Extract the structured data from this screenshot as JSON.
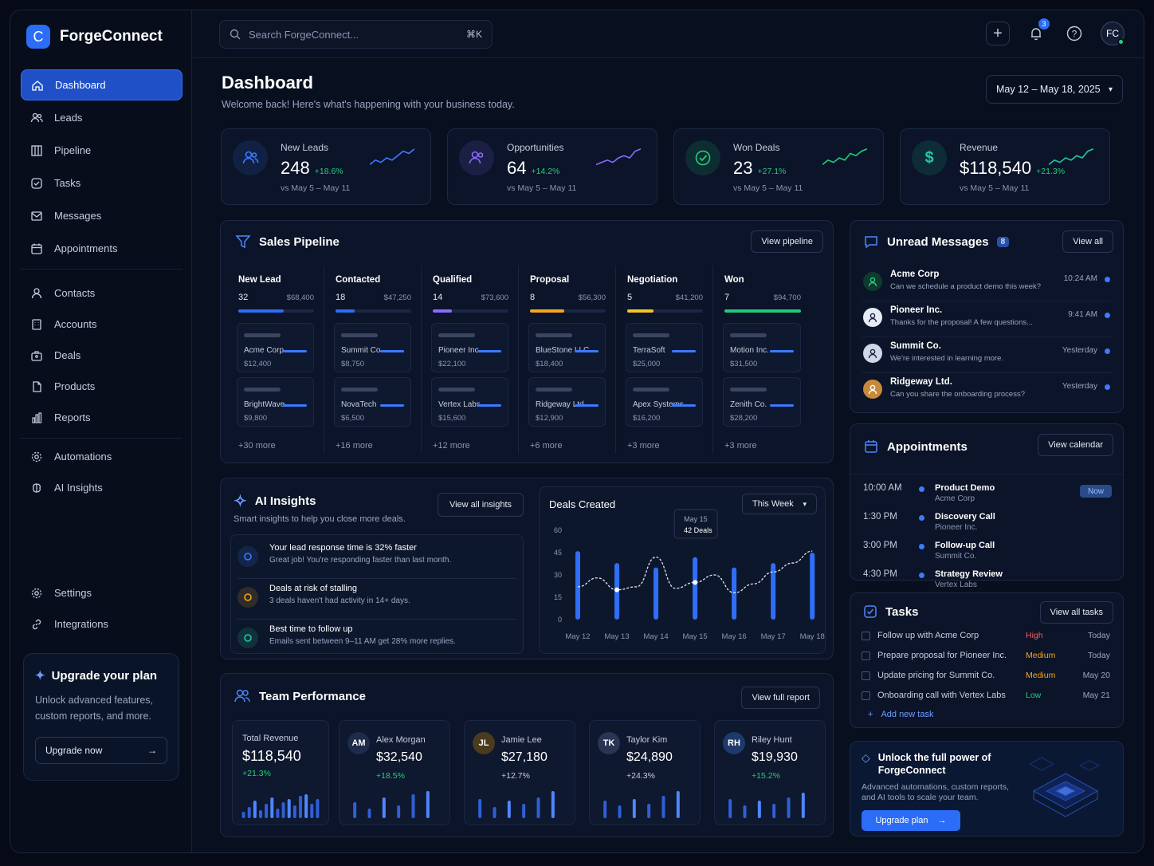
{
  "app": {
    "name": "ForgeConnect",
    "logo_letter": "C"
  },
  "search": {
    "placeholder": "Search ForgeConnect...",
    "shortcut": "⌘K"
  },
  "topbar": {
    "notif_count": "3",
    "user_initials": "FC"
  },
  "sidebar": {
    "items": [
      {
        "label": "Dashboard",
        "icon": "home-icon"
      },
      {
        "label": "Leads",
        "icon": "users-icon"
      },
      {
        "label": "Pipeline",
        "icon": "columns-icon"
      },
      {
        "label": "Tasks",
        "icon": "check-square-icon"
      },
      {
        "label": "Messages",
        "icon": "mail-icon"
      },
      {
        "label": "Appointments",
        "icon": "calendar-icon"
      },
      {
        "label": "Contacts",
        "icon": "user-icon"
      },
      {
        "label": "Accounts",
        "icon": "building-icon"
      },
      {
        "label": "Deals",
        "icon": "briefcase-icon"
      },
      {
        "label": "Products",
        "icon": "box-icon"
      },
      {
        "label": "Reports",
        "icon": "bar-chart-icon"
      },
      {
        "label": "Automations",
        "icon": "gear-icon"
      },
      {
        "label": "AI Insights",
        "icon": "brain-icon"
      },
      {
        "label": "Settings",
        "icon": "gear-icon"
      },
      {
        "label": "Integrations",
        "icon": "link-icon"
      }
    ],
    "upgrade": {
      "title": "Upgrade your plan",
      "text1": "Unlock advanced features,",
      "text2": "custom reports, and more.",
      "button": "Upgrade now"
    }
  },
  "header": {
    "title": "Dashboard",
    "subtitle": "Welcome back! Here's what's happening with your business today.",
    "date_range": "May 12 – May 18, 2025"
  },
  "kpis": [
    {
      "label": "New Leads",
      "value": "248",
      "change": "+18.6%",
      "compare": "vs May 5 – May 11",
      "color": "#3b7bff"
    },
    {
      "label": "Opportunities",
      "value": "64",
      "change": "+14.2%",
      "compare": "vs May 5 – May 11",
      "color": "#8a6bff"
    },
    {
      "label": "Won Deals",
      "value": "23",
      "change": "+27.1%",
      "compare": "vs May 5 – May 11",
      "color": "#22d07a"
    },
    {
      "label": "Revenue",
      "value": "$118,540",
      "change": "+21.3%",
      "compare": "vs May 5 – May 11",
      "color": "#22c8a0"
    }
  ],
  "pipeline": {
    "title": "Sales Pipeline",
    "button": "View pipeline",
    "stages": [
      {
        "name": "New Lead",
        "count": "32",
        "amount": "$68,400",
        "color": "#2b6df6",
        "fill": 0.6,
        "deals": [
          {
            "name": "Acme Corp",
            "value": "$12,400"
          },
          {
            "name": "BrightWave",
            "value": "$9,800"
          }
        ],
        "more": "+30 more"
      },
      {
        "name": "Contacted",
        "count": "18",
        "amount": "$47,250",
        "color": "#2b6df6",
        "fill": 0.25,
        "deals": [
          {
            "name": "Summit Co.",
            "value": "$8,750"
          },
          {
            "name": "NovaTech",
            "value": "$6,500"
          }
        ],
        "more": "+16 more"
      },
      {
        "name": "Qualified",
        "count": "14",
        "amount": "$73,600",
        "color": "#8a6bff",
        "fill": 0.25,
        "deals": [
          {
            "name": "Pioneer Inc.",
            "value": "$22,100"
          },
          {
            "name": "Vertex Labs",
            "value": "$15,600"
          }
        ],
        "more": "+12 more"
      },
      {
        "name": "Proposal",
        "count": "8",
        "amount": "$56,300",
        "color": "#f5a524",
        "fill": 0.45,
        "deals": [
          {
            "name": "BlueStone LLC",
            "value": "$18,400"
          },
          {
            "name": "Ridgeway Ltd.",
            "value": "$12,900"
          }
        ],
        "more": "+6 more"
      },
      {
        "name": "Negotiation",
        "count": "5",
        "amount": "$41,200",
        "color": "#f5c524",
        "fill": 0.35,
        "deals": [
          {
            "name": "TerraSoft",
            "value": "$25,000"
          },
          {
            "name": "Apex Systems",
            "value": "$16,200"
          }
        ],
        "more": "+3 more"
      },
      {
        "name": "Won",
        "count": "7",
        "amount": "$94,700",
        "color": "#22c87a",
        "fill": 1.0,
        "deals": [
          {
            "name": "Motion Inc.",
            "value": "$31,500"
          },
          {
            "name": "Zenith Co.",
            "value": "$28,200"
          }
        ],
        "more": "+3 more"
      }
    ]
  },
  "messages": {
    "title": "Unread Messages",
    "count": "8",
    "button": "View all",
    "items": [
      {
        "from": "Acme Corp",
        "text": "Can we schedule a product demo this week?",
        "time": "10:24 AM"
      },
      {
        "from": "Pioneer Inc.",
        "text": "Thanks for the proposal! A few questions...",
        "time": "9:41 AM"
      },
      {
        "from": "Summit Co.",
        "text": "We're interested in learning more.",
        "time": "Yesterday"
      },
      {
        "from": "Ridgeway Ltd.",
        "text": "Can you share the onboarding process?",
        "time": "Yesterday"
      }
    ]
  },
  "appointments": {
    "title": "Appointments",
    "button": "View calendar",
    "items": [
      {
        "time": "10:00 AM",
        "name": "Product Demo",
        "company": "Acme Corp",
        "badge": "Now"
      },
      {
        "time": "1:30 PM",
        "name": "Discovery Call",
        "company": "Pioneer Inc.",
        "badge": ""
      },
      {
        "time": "3:00 PM",
        "name": "Follow-up Call",
        "company": "Summit Co.",
        "badge": ""
      },
      {
        "time": "4:30 PM",
        "name": "Strategy Review",
        "company": "Vertex Labs",
        "badge": ""
      }
    ]
  },
  "tasks": {
    "title": "Tasks",
    "button": "View all tasks",
    "add": "Add new task",
    "items": [
      {
        "text": "Follow up with Acme Corp",
        "priority": "High",
        "due": "Today",
        "color": "#ff5a5a"
      },
      {
        "text": "Prepare proposal for Pioneer Inc.",
        "priority": "Medium",
        "due": "Today",
        "color": "#f5a524"
      },
      {
        "text": "Update pricing for Summit Co.",
        "priority": "Medium",
        "due": "May 20",
        "color": "#f5a524"
      },
      {
        "text": "Onboarding call with Vertex Labs",
        "priority": "Low",
        "due": "May 21",
        "color": "#22d07a"
      }
    ]
  },
  "insights": {
    "title": "AI Insights",
    "subtitle": "Smart insights to help you close more deals.",
    "button": "View all insights",
    "items": [
      {
        "title": "Your lead response time is 32% faster",
        "text": "Great job! You're responding faster than last month.",
        "color": "#3b7bff"
      },
      {
        "title": "Deals at risk of stalling",
        "text": "3 deals haven't had activity in 14+ days.",
        "color": "#f5a524"
      },
      {
        "title": "Best time to follow up",
        "text": "Emails sent between 9–11 AM get 28% more replies.",
        "color": "#22c8a0"
      }
    ]
  },
  "chart_data": {
    "type": "bar",
    "title": "Deals Created",
    "period": "This Week",
    "categories": [
      "May 12",
      "May 13",
      "May 14",
      "May 15",
      "May 16",
      "May 17",
      "May 18"
    ],
    "series": [
      {
        "values": [
          46,
          38,
          35,
          42,
          35,
          38,
          45
        ]
      }
    ],
    "line_values": [
      22,
      28,
      20,
      22,
      42,
      21,
      25,
      30,
      18,
      24,
      32,
      38,
      46
    ],
    "ylim": [
      0,
      60
    ],
    "yticks": [
      0,
      15,
      30,
      45,
      60
    ],
    "tooltip": {
      "date": "May 15",
      "value": "42 Deals"
    }
  },
  "team": {
    "title": "Team Performance",
    "button": "View full report",
    "total": {
      "label": "Total Revenue",
      "value": "$118,540",
      "change": "+21.3%"
    },
    "members": [
      {
        "initials": "AM",
        "name": "Alex Morgan",
        "value": "$32,540",
        "change": "+18.5%",
        "color": "#22d07a",
        "avatar_bg": "#1e2b4a"
      },
      {
        "initials": "JL",
        "name": "Jamie Lee",
        "value": "$27,180",
        "change": "+12.7%",
        "color": "#c6cde0",
        "avatar_bg": "#4a3a1e"
      },
      {
        "initials": "TK",
        "name": "Taylor Kim",
        "value": "$24,890",
        "change": "+24.3%",
        "color": "#c6cde0",
        "avatar_bg": "#2a3553"
      },
      {
        "initials": "RH",
        "name": "Riley Hunt",
        "value": "$19,930",
        "change": "+15.2%",
        "color": "#22d07a",
        "avatar_bg": "#1e3a6a"
      }
    ]
  },
  "promo": {
    "title1": "Unlock the full power of",
    "title2": "ForgeConnect",
    "text1": "Advanced automations, custom reports,",
    "text2": "and AI tools to scale your team.",
    "button": "Upgrade plan"
  }
}
